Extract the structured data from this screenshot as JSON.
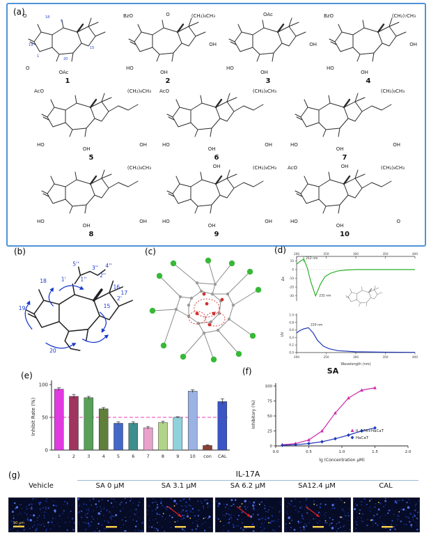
{
  "panel_labels": {
    "a": "(a)",
    "b": "(b)",
    "c": "(c)",
    "d": "(d)",
    "e": "(e)",
    "f": "(f)",
    "g": "(g)"
  },
  "compounds": [
    {
      "number": "1",
      "labels": {
        "tl": "O",
        "bl": "O",
        "b": "OAc"
      },
      "atom_numbers": [
        "18",
        "19",
        "1",
        "5",
        "15",
        "20"
      ]
    },
    {
      "number": "2",
      "labels": {
        "tl": "BzO",
        "t": "O",
        "tr": "(CH₂)₈CH₃",
        "r": "OH",
        "bl": "HO",
        "b": "OH"
      }
    },
    {
      "number": "3",
      "labels": {
        "t": "OAc",
        "r": "OH",
        "bl": "HO",
        "b": "OH"
      }
    },
    {
      "number": "4",
      "labels": {
        "tl": "BzO",
        "tr": "(CH₂)₇CH₃",
        "r": "OH",
        "bl": "HO",
        "b": "OH"
      }
    },
    {
      "number": "5",
      "labels": {
        "tl": "AcO",
        "tr": "(CH₂)₈CH₃",
        "bl": "HO",
        "b": "OH",
        "br": "OH"
      }
    },
    {
      "number": "6",
      "labels": {
        "tl": "AcO",
        "tr": "(CH₂)₈CH₃",
        "bl": "HO",
        "b": "OH",
        "br": "OH"
      }
    },
    {
      "number": "7",
      "labels": {
        "tr": "(CH₂)₈CH₃",
        "bl": "HO",
        "b": "OH",
        "br": "OH"
      }
    },
    {
      "number": "8",
      "labels": {
        "tr": "(CH₂)₈CH₃",
        "bl": "HO",
        "b": "OH",
        "br": "OH"
      }
    },
    {
      "number": "9",
      "labels": {
        "t": "OH",
        "tr": "(CH₂)₈CH₃",
        "bl": "HO",
        "b": "OH",
        "br": "OH"
      }
    },
    {
      "number": "10",
      "labels": {
        "tl": "AcO",
        "t": "OH",
        "tr": "(CH₂)₈CH₃",
        "bl": "HO",
        "b": "OH",
        "br": "O"
      }
    }
  ],
  "panel_b": {
    "atom_labels": [
      "4''",
      "3''",
      "5''",
      "2''",
      "1''",
      "1'",
      "2'",
      "18",
      "16",
      "17",
      "15",
      "19",
      "20"
    ]
  },
  "panel_c": {
    "atom_colors": {
      "halogen": "#38b838",
      "carbon": "#999999",
      "oxygen": "#d03030"
    },
    "hbond_color": "#d03030"
  },
  "chart_data": [
    {
      "id": "ecd-uv-spectra",
      "type": "line",
      "panel": "d",
      "xlabel": "Wavelength (nm)",
      "x_range": [
        200,
        400
      ],
      "x_ticks": [
        200,
        250,
        300,
        350,
        400
      ],
      "subplots": [
        {
          "name": "ECD",
          "ylabel": "Δε",
          "color": "#2ab02a",
          "y_ticks": [
            10,
            0,
            -10,
            -20,
            -30
          ],
          "annotations": [
            "212 nm",
            "232 nm"
          ],
          "x": [
            200,
            205,
            212,
            218,
            224,
            232,
            240,
            248,
            258,
            270,
            285,
            300,
            350,
            400
          ],
          "y": [
            6,
            9,
            12,
            2,
            -14,
            -30,
            -17,
            -8,
            -4,
            -1.5,
            -0.5,
            0,
            0,
            0
          ]
        },
        {
          "name": "UV",
          "ylabel": "UV",
          "color": "#2038b8",
          "y_ticks": [
            0.0,
            0.2,
            0.4,
            0.6,
            0.8,
            1.0
          ],
          "annotations": [
            "220 nm"
          ],
          "x": [
            200,
            205,
            212,
            220,
            228,
            235,
            245,
            255,
            270,
            300,
            350,
            400
          ],
          "y": [
            0.52,
            0.58,
            0.63,
            0.66,
            0.52,
            0.33,
            0.17,
            0.1,
            0.05,
            0.02,
            0.01,
            0.005
          ]
        }
      ]
    },
    {
      "id": "inhibit-rate-bars",
      "type": "bar",
      "panel": "e",
      "ylabel": "Inhibit Rate (%)",
      "ylim": [
        0,
        100
      ],
      "y_ticks": [
        0,
        50,
        100
      ],
      "dashed_line_y": 50,
      "dashed_line_color": "#ee3bb0",
      "categories": [
        "1",
        "2",
        "3",
        "4",
        "5",
        "6",
        "7",
        "8",
        "9",
        "10",
        "con",
        "CAL"
      ],
      "values": [
        93,
        82,
        80,
        63,
        41,
        41,
        34,
        42,
        50,
        90,
        7,
        74
      ],
      "errors": [
        2,
        3,
        2,
        2,
        2,
        2,
        2,
        2,
        1,
        2,
        1,
        4
      ],
      "colors": [
        "#e03ae0",
        "#a03560",
        "#58a058",
        "#5f7f3a",
        "#4468c8",
        "#3d8f8f",
        "#e8a2cc",
        "#b2d488",
        "#8fd2dc",
        "#9ab2e4",
        "#8b4034",
        "#3b55c4"
      ]
    },
    {
      "id": "sa-dose-response",
      "type": "line",
      "panel": "f",
      "title": "SA",
      "xlabel": "lg (Concentration μM)",
      "ylabel": "Inhibitory (%)",
      "xlim": [
        0,
        2
      ],
      "ylim": [
        0,
        100
      ],
      "x_ticks": [
        0.0,
        0.5,
        1.0,
        1.5,
        2.0
      ],
      "y_ticks": [
        0,
        25,
        50,
        75,
        100
      ],
      "legend_position": "right",
      "series": [
        {
          "name": "IL-17A+HaCaT",
          "color": "#cc2aaa",
          "marker": "triangle",
          "x": [
            0.1,
            0.3,
            0.5,
            0.7,
            0.9,
            1.1,
            1.3,
            1.5
          ],
          "y": [
            2,
            4,
            10,
            25,
            55,
            80,
            93,
            97
          ]
        },
        {
          "name": "HaCaT",
          "color": "#2038b8",
          "marker": "diamond",
          "x": [
            0.1,
            0.3,
            0.5,
            0.7,
            0.9,
            1.1,
            1.3,
            1.5
          ],
          "y": [
            1,
            2,
            4,
            7,
            12,
            18,
            25,
            30
          ]
        }
      ]
    }
  ],
  "micrographs": {
    "header": "IL-17A",
    "columns": [
      {
        "label": "Vehicle",
        "scale_text": "50 μm",
        "red_arrow": false,
        "yellow_dots": false
      },
      {
        "label": "SA 0 μM",
        "red_arrow": false,
        "yellow_dots": false
      },
      {
        "label": "SA 3.1 μM",
        "red_arrow": true,
        "yellow_dots": true
      },
      {
        "label": "SA 6.2 μM",
        "red_arrow": true,
        "yellow_dots": true
      },
      {
        "label": "SA12.4 μM",
        "red_arrow": true,
        "yellow_dots": true
      },
      {
        "label": "CAL",
        "red_arrow": false,
        "yellow_dots": true
      }
    ]
  }
}
